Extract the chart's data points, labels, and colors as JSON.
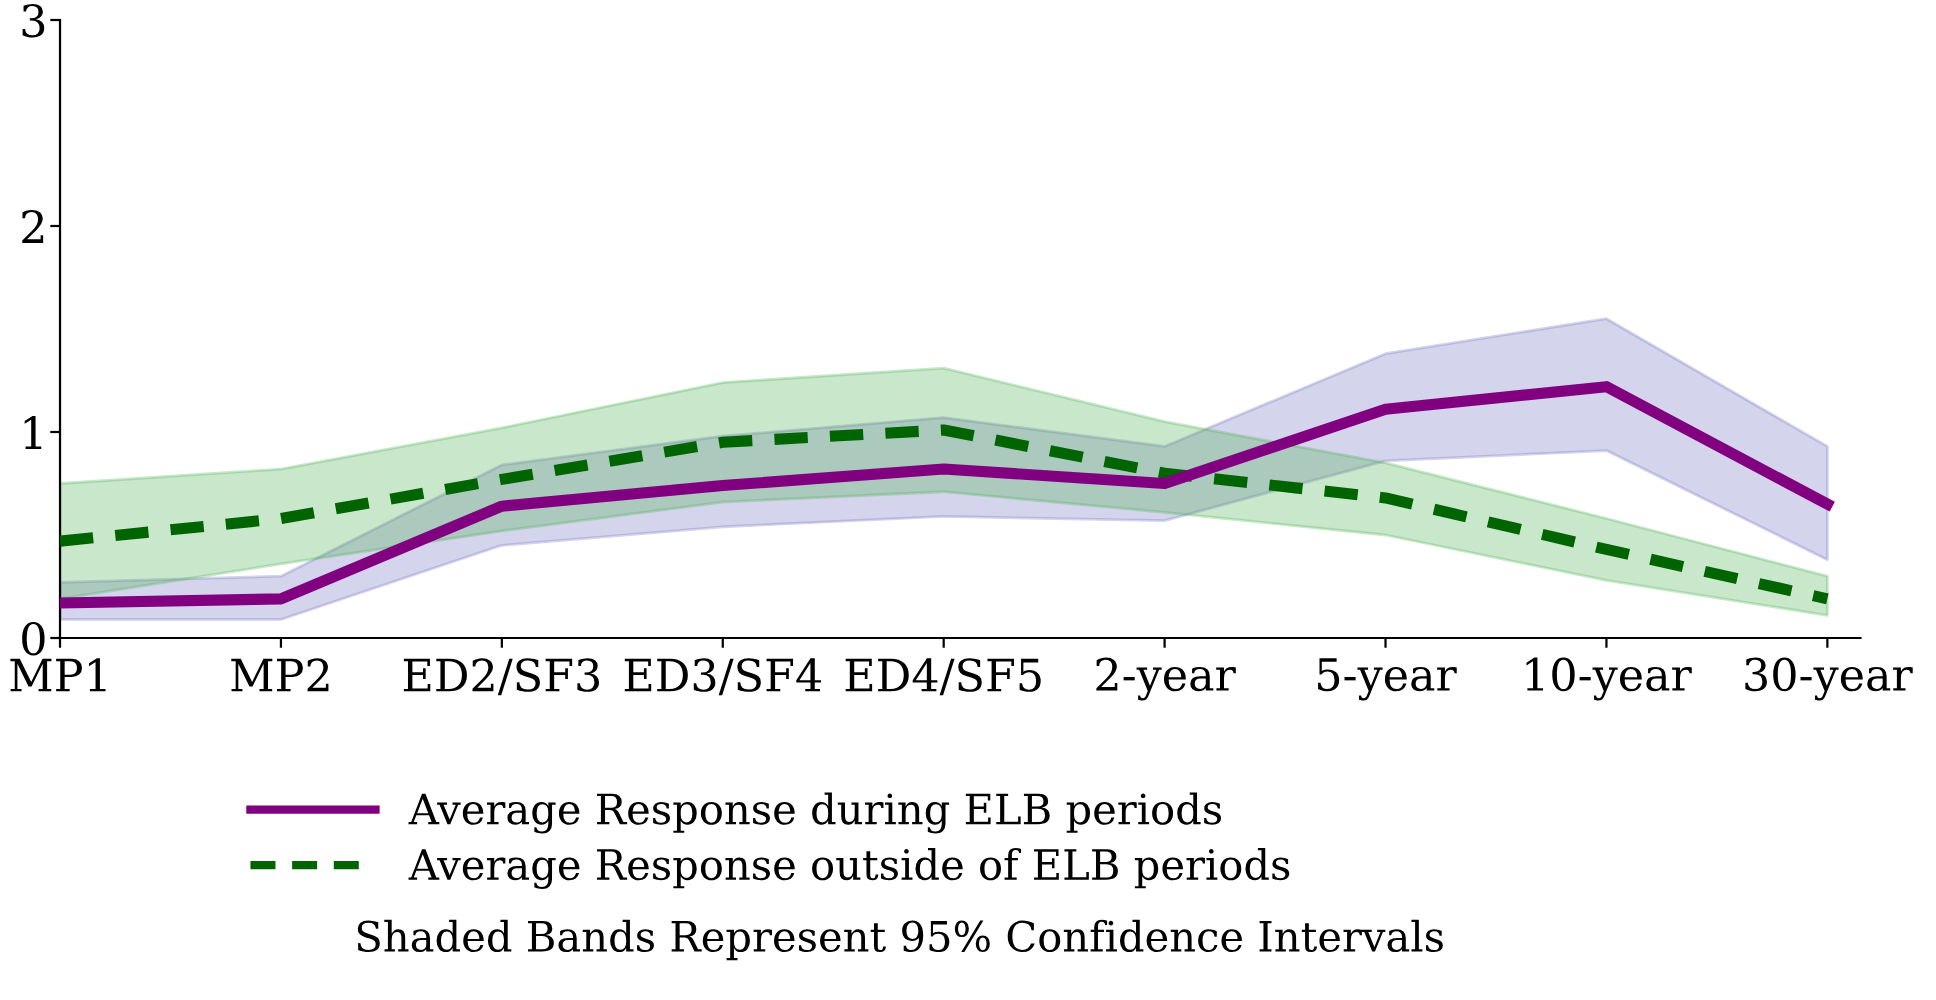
{
  "chart_data": {
    "type": "line",
    "categories": [
      "MP1",
      "MP2",
      "ED2/SF3",
      "ED3/SF4",
      "ED4/SF5",
      "2-year",
      "5-year",
      "10-year",
      "30-year"
    ],
    "series": [
      {
        "name": "Average Response during ELB periods",
        "color": "#800080",
        "line_style": "solid",
        "values": [
          0.17,
          0.19,
          0.64,
          0.74,
          0.82,
          0.75,
          1.11,
          1.22,
          0.65
        ],
        "lower": [
          0.09,
          0.09,
          0.45,
          0.54,
          0.59,
          0.57,
          0.86,
          0.91,
          0.38
        ],
        "upper": [
          0.27,
          0.3,
          0.84,
          0.98,
          1.07,
          0.93,
          1.38,
          1.55,
          0.93
        ]
      },
      {
        "name": "Average Response outside of ELB periods",
        "color": "#006400",
        "line_style": "dashed",
        "values": [
          0.47,
          0.58,
          0.77,
          0.95,
          1.01,
          0.8,
          0.68,
          0.43,
          0.19
        ],
        "lower": [
          0.19,
          0.36,
          0.52,
          0.66,
          0.71,
          0.61,
          0.5,
          0.28,
          0.11
        ],
        "upper": [
          0.75,
          0.82,
          1.02,
          1.24,
          1.31,
          1.05,
          0.85,
          0.58,
          0.3
        ]
      }
    ],
    "ylim": [
      0,
      3
    ],
    "yticks": [
      0,
      1,
      2,
      3
    ],
    "grid": false,
    "legend": "bottom",
    "marker": "none",
    "annotations": [
      "Shaded Bands Represent 95% Confidence Intervals"
    ]
  }
}
